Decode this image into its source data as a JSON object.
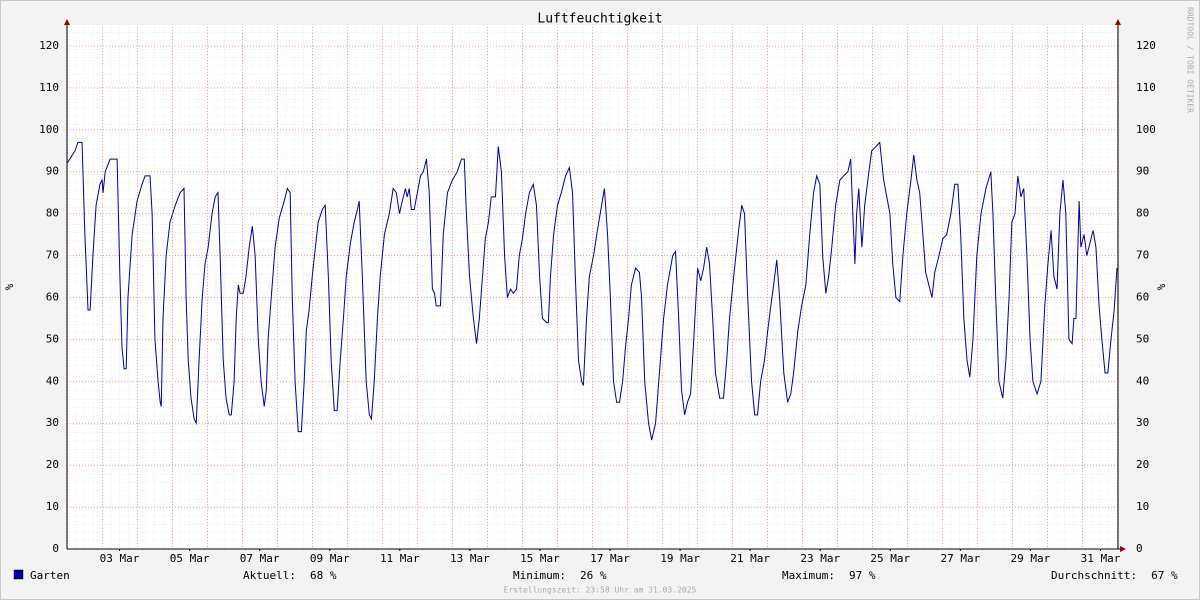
{
  "chart_data": {
    "type": "line",
    "title": "Luftfeuchtigkeit",
    "y_label": "%",
    "x": [
      2.0,
      2.23,
      2.31,
      2.43,
      2.51,
      2.6,
      2.66,
      2.74,
      2.83,
      2.94,
      3.0,
      3.03,
      3.09,
      3.23,
      3.43,
      3.51,
      3.57,
      3.63,
      3.69,
      3.74,
      3.86,
      4.0,
      4.14,
      4.23,
      4.37,
      4.43,
      4.51,
      4.6,
      4.66,
      4.69,
      4.74,
      4.83,
      4.94,
      5.09,
      5.23,
      5.34,
      5.4,
      5.46,
      5.54,
      5.63,
      5.69,
      5.77,
      5.86,
      5.94,
      6.03,
      6.14,
      6.23,
      6.31,
      6.37,
      6.46,
      6.54,
      6.63,
      6.69,
      6.77,
      6.83,
      6.89,
      6.94,
      7.03,
      7.11,
      7.2,
      7.29,
      7.37,
      7.46,
      7.54,
      7.63,
      7.69,
      7.74,
      7.83,
      7.94,
      8.06,
      8.2,
      8.29,
      8.37,
      8.43,
      8.51,
      8.6,
      8.69,
      8.77,
      8.83,
      8.91,
      9.0,
      9.09,
      9.17,
      9.29,
      9.37,
      9.46,
      9.54,
      9.63,
      9.71,
      9.8,
      9.89,
      9.97,
      10.09,
      10.2,
      10.29,
      10.34,
      10.43,
      10.54,
      10.63,
      10.69,
      10.77,
      10.86,
      10.94,
      11.06,
      11.2,
      11.31,
      11.4,
      11.49,
      11.57,
      11.66,
      11.71,
      11.77,
      11.83,
      11.91,
      12.0,
      12.09,
      12.17,
      12.26,
      12.34,
      12.43,
      12.49,
      12.54,
      12.66,
      12.74,
      12.86,
      13.0,
      13.14,
      13.26,
      13.34,
      13.4,
      13.49,
      13.6,
      13.69,
      13.77,
      13.86,
      13.94,
      14.03,
      14.11,
      14.23,
      14.31,
      14.4,
      14.49,
      14.57,
      14.66,
      14.74,
      14.83,
      14.91,
      15.0,
      15.09,
      15.2,
      15.31,
      15.4,
      15.49,
      15.57,
      15.69,
      15.74,
      15.8,
      15.89,
      16.0,
      16.11,
      16.23,
      16.34,
      16.43,
      16.51,
      16.6,
      16.69,
      16.74,
      16.83,
      16.91,
      17.03,
      17.14,
      17.26,
      17.34,
      17.43,
      17.51,
      17.6,
      17.69,
      17.77,
      17.86,
      17.94,
      18.03,
      18.11,
      18.23,
      18.34,
      18.4,
      18.49,
      18.6,
      18.69,
      18.8,
      18.91,
      19.03,
      19.14,
      19.29,
      19.37,
      19.46,
      19.54,
      19.63,
      19.71,
      19.8,
      19.89,
      20.0,
      20.09,
      20.17,
      20.26,
      20.34,
      20.43,
      20.51,
      20.63,
      20.74,
      20.83,
      20.91,
      21.03,
      21.17,
      21.26,
      21.34,
      21.43,
      21.54,
      21.63,
      21.71,
      21.8,
      21.91,
      22.0,
      22.09,
      22.17,
      22.26,
      22.34,
      22.46,
      22.57,
      22.66,
      22.74,
      22.86,
      22.97,
      23.09,
      23.2,
      23.31,
      23.4,
      23.49,
      23.57,
      23.66,
      23.74,
      23.83,
      23.94,
      24.06,
      24.17,
      24.29,
      24.37,
      24.43,
      24.49,
      24.54,
      24.6,
      24.69,
      24.77,
      24.89,
      24.97,
      25.09,
      25.2,
      25.31,
      25.4,
      25.49,
      25.57,
      25.66,
      25.77,
      25.86,
      25.97,
      26.09,
      26.17,
      26.26,
      26.34,
      26.43,
      26.51,
      26.6,
      26.69,
      26.77,
      26.89,
      27.0,
      27.11,
      27.23,
      27.34,
      27.43,
      27.51,
      27.6,
      27.69,
      27.77,
      27.86,
      27.97,
      28.09,
      28.23,
      28.37,
      28.43,
      28.51,
      28.6,
      28.71,
      28.8,
      28.89,
      28.97,
      29.06,
      29.14,
      29.23,
      29.31,
      29.4,
      29.49,
      29.57,
      29.69,
      29.8,
      29.91,
      30.0,
      30.09,
      30.17,
      30.26,
      30.34,
      30.43,
      30.51,
      30.6,
      30.69,
      30.74,
      30.8,
      30.89,
      30.94,
      31.03,
      31.11,
      31.2,
      31.29,
      31.37,
      31.46,
      31.54,
      31.63,
      31.71,
      31.8,
      31.89,
      31.97
    ],
    "series": [
      {
        "name": "Garten",
        "color": "#0000a0",
        "values": [
          92,
          95,
          97,
          97,
          75,
          57,
          57,
          70,
          82,
          87,
          88,
          85,
          90,
          93,
          93,
          65,
          48,
          43,
          43,
          60,
          75,
          83,
          87,
          89,
          89,
          80,
          50,
          40,
          35,
          34,
          55,
          70,
          78,
          82,
          85,
          86,
          60,
          45,
          36,
          31,
          30,
          45,
          60,
          68,
          72,
          80,
          84,
          85,
          70,
          45,
          36,
          32,
          32,
          40,
          55,
          63,
          61,
          61,
          65,
          72,
          77,
          70,
          50,
          40,
          34,
          38,
          50,
          60,
          72,
          79,
          83,
          86,
          85,
          60,
          40,
          28,
          28,
          40,
          52,
          57,
          65,
          72,
          78,
          81,
          82,
          65,
          45,
          33,
          33,
          45,
          55,
          65,
          73,
          78,
          81,
          83,
          65,
          40,
          32,
          31,
          40,
          55,
          65,
          75,
          80,
          86,
          85,
          80,
          83,
          86,
          84,
          86,
          81,
          81,
          85,
          89,
          90,
          93,
          85,
          62,
          61,
          58,
          58,
          75,
          85,
          88,
          90,
          93,
          93,
          80,
          65,
          55,
          49,
          55,
          65,
          74,
          78,
          84,
          84,
          96,
          90,
          70,
          60,
          62,
          61,
          62,
          70,
          74,
          80,
          85,
          87,
          82,
          65,
          55,
          54,
          54,
          65,
          75,
          82,
          85,
          89,
          91,
          85,
          65,
          45,
          40,
          39,
          55,
          65,
          70,
          76,
          82,
          86,
          75,
          60,
          40,
          35,
          35,
          40,
          48,
          55,
          63,
          67,
          66,
          60,
          40,
          30,
          26,
          30,
          42,
          55,
          63,
          70,
          71,
          55,
          38,
          32,
          35,
          37,
          50,
          67,
          64,
          67,
          72,
          68,
          55,
          42,
          36,
          36,
          45,
          55,
          65,
          76,
          82,
          80,
          60,
          40,
          32,
          32,
          40,
          45,
          52,
          58,
          63,
          69,
          60,
          42,
          35,
          37,
          42,
          52,
          58,
          63,
          75,
          85,
          89,
          87,
          70,
          61,
          65,
          72,
          82,
          88,
          89,
          90,
          93,
          80,
          68,
          80,
          86,
          72,
          82,
          90,
          95,
          96,
          97,
          88,
          84,
          80,
          68,
          60,
          59,
          70,
          80,
          88,
          94,
          88,
          85,
          75,
          66,
          63,
          60,
          66,
          70,
          74,
          75,
          80,
          87,
          87,
          75,
          55,
          45,
          41,
          50,
          70,
          80,
          86,
          90,
          80,
          60,
          40,
          36,
          45,
          60,
          78,
          80,
          89,
          84,
          86,
          70,
          50,
          40,
          37,
          40,
          58,
          68,
          76,
          65,
          62,
          80,
          88,
          80,
          50,
          49,
          55,
          55,
          83,
          72,
          75,
          70,
          73,
          76,
          72,
          58,
          50,
          42,
          42,
          50,
          57,
          67
        ]
      }
    ],
    "xlim": [
      2,
      32
    ],
    "ylim": [
      0,
      125
    ],
    "yticks": [
      0,
      10,
      20,
      30,
      40,
      50,
      60,
      70,
      80,
      90,
      100,
      110,
      120
    ],
    "xticks": [
      {
        "value": 3.5,
        "label": "03 Mar"
      },
      {
        "value": 5.5,
        "label": "05 Mar"
      },
      {
        "value": 7.5,
        "label": "07 Mar"
      },
      {
        "value": 9.5,
        "label": "09 Mar"
      },
      {
        "value": 11.5,
        "label": "11 Mar"
      },
      {
        "value": 13.5,
        "label": "13 Mar"
      },
      {
        "value": 15.5,
        "label": "15 Mar"
      },
      {
        "value": 17.5,
        "label": "17 Mar"
      },
      {
        "value": 19.5,
        "label": "19 Mar"
      },
      {
        "value": 21.5,
        "label": "21 Mar"
      },
      {
        "value": 23.5,
        "label": "23 Mar"
      },
      {
        "value": 25.5,
        "label": "25 Mar"
      },
      {
        "value": 27.5,
        "label": "27 Mar"
      },
      {
        "value": 29.5,
        "label": "29 Mar"
      },
      {
        "value": 31.5,
        "label": "31 Mar"
      }
    ],
    "grid": true,
    "stats": [
      {
        "label": "Aktuell:",
        "value": 68,
        "value_label": "68 %"
      },
      {
        "label": "Minimum:",
        "value": 26,
        "value_label": "26 %"
      },
      {
        "label": "Maximum:",
        "value": 97,
        "value_label": "97 %"
      },
      {
        "label": "Durchschnitt:",
        "value": 67,
        "value_label": "67 %"
      }
    ]
  },
  "footer": "Erstellungszeit: 23:58 Uhr am 31.03.2025",
  "watermark": "RRDTOOL / TOBI OETIKER"
}
